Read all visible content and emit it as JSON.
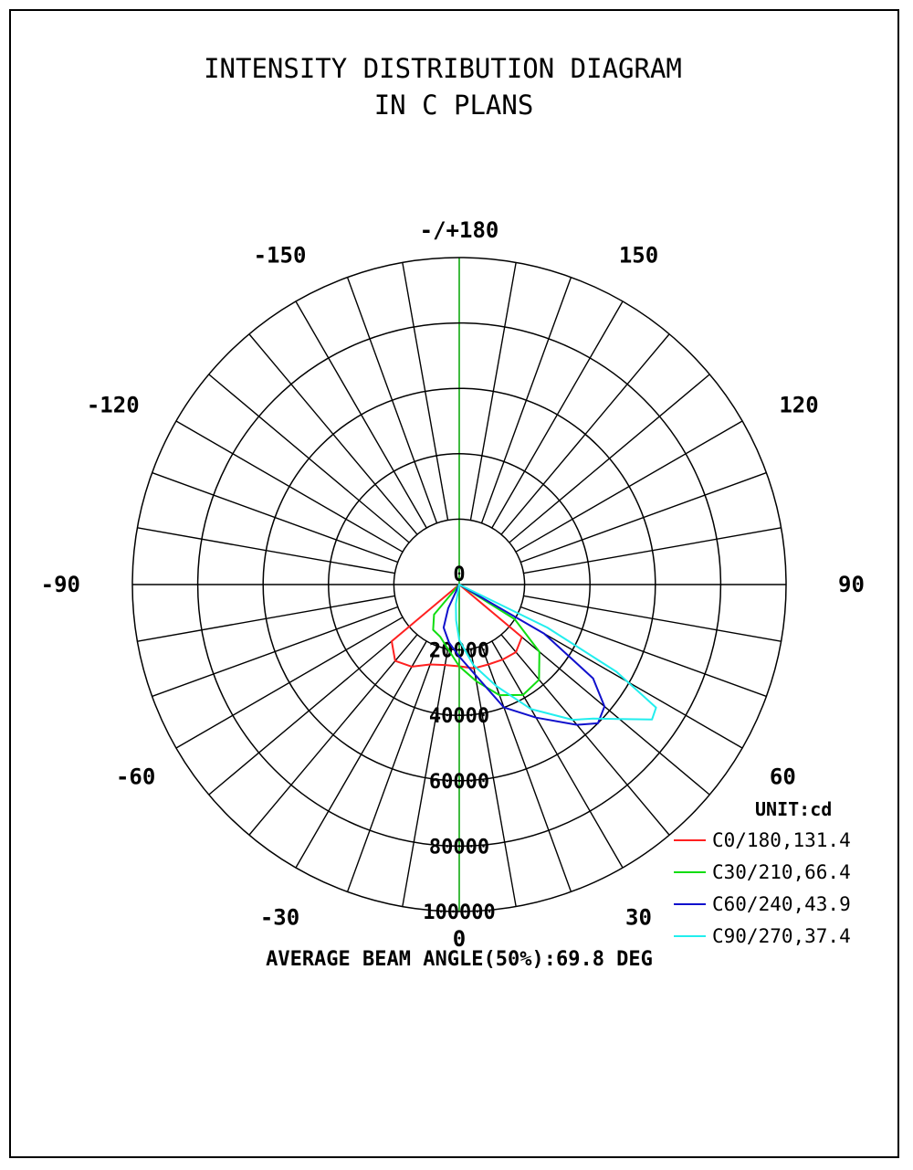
{
  "chart_data": {
    "type": "polar-line",
    "title": [
      "INTENSITY DISTRIBUTION DIAGRAM",
      "IN C PLANS"
    ],
    "unit_label": "UNIT:cd",
    "angle_labels": [
      "-/+180",
      "150",
      "120",
      "90",
      "60",
      "30",
      "0",
      "-30",
      "-60",
      "-90",
      "-120",
      "-150"
    ],
    "center_label": "0",
    "radial_ticks": [
      20000,
      40000,
      60000,
      80000,
      100000
    ],
    "radial_tick_labels": [
      "20000",
      "40000",
      "60000",
      "80000",
      "100000"
    ],
    "radial_max": 100000,
    "footer": "AVERAGE BEAM ANGLE(50%):69.8 DEG",
    "series": [
      {
        "name": "C0/180,131.4",
        "color": "#ff2020",
        "angles": [
          -58,
          -50,
          -40,
          -30,
          -20,
          -10,
          0,
          10,
          20,
          30,
          40,
          50,
          58
        ],
        "values": [
          0,
          27000,
          30500,
          29000,
          26000,
          25000,
          25000,
          26000,
          26000,
          26500,
          27000,
          25000,
          0
        ]
      },
      {
        "name": "C30/210,66.4",
        "color": "#10dd10",
        "angles": [
          -45,
          -40,
          -30,
          -20,
          -10,
          0,
          10,
          20,
          30,
          40,
          50,
          58,
          62
        ],
        "values": [
          0,
          12000,
          16000,
          17000,
          20000,
          25000,
          30000,
          36000,
          39000,
          38000,
          32000,
          20000,
          0
        ]
      },
      {
        "name": "C60/240,43.9",
        "color": "#1010cc",
        "angles": [
          -30,
          -25,
          -20,
          -10,
          0,
          10,
          20,
          30,
          40,
          45,
          50,
          55,
          60,
          64
        ],
        "values": [
          0,
          8000,
          14000,
          18000,
          22000,
          28000,
          40000,
          47000,
          56000,
          60000,
          58000,
          50000,
          30000,
          0
        ]
      },
      {
        "name": "C90/270,37.4",
        "color": "#22eeee",
        "angles": [
          -15,
          -10,
          -5,
          0,
          10,
          20,
          30,
          40,
          45,
          50,
          55,
          58,
          61,
          64,
          66
        ],
        "values": [
          0,
          6000,
          11000,
          17000,
          25000,
          33000,
          44000,
          54000,
          58000,
          64000,
          72000,
          71000,
          55000,
          30000,
          0
        ]
      }
    ]
  }
}
